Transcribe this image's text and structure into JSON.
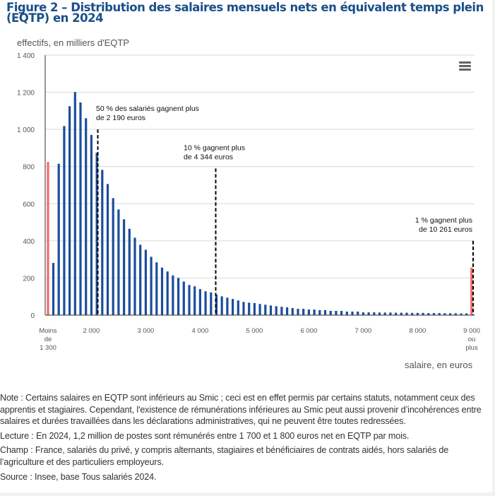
{
  "title": "Figure 2 – Distribution des salaires mensuels nets en équivalent temps plein (EQTP) en 2024",
  "menu_icon": "hamburger-menu-icon",
  "colors": {
    "bar": "#1b4d9b",
    "edge_bar": "#f26b6b",
    "grid": "#d9d9d9",
    "title": "#1b4f8a"
  },
  "chart_data": {
    "type": "bar",
    "title": "Distribution des salaires mensuels nets en équivalent temps plein (EQTP) en 2024",
    "ylabel": "effectifs, en milliers d'EQTP",
    "xlabel": "salaire, en euros",
    "ylim": [
      0,
      1400
    ],
    "yticks": [
      0,
      200,
      400,
      600,
      800,
      1000,
      1200,
      1400
    ],
    "ytick_labels": [
      "0",
      "200",
      "400",
      "600",
      "800",
      "1 000",
      "1 200",
      "1 400"
    ],
    "grid": true,
    "x_bin_width": 100,
    "xticks": [
      {
        "value": 1200,
        "label": [
          "Moins",
          "de",
          "1 300"
        ]
      },
      {
        "value": 2000,
        "label": [
          "2 000"
        ]
      },
      {
        "value": 3000,
        "label": [
          "3 000"
        ]
      },
      {
        "value": 4000,
        "label": [
          "4 000"
        ]
      },
      {
        "value": 5000,
        "label": [
          "5 000"
        ]
      },
      {
        "value": 6000,
        "label": [
          "6 000"
        ]
      },
      {
        "value": 7000,
        "label": [
          "7 000"
        ]
      },
      {
        "value": 8000,
        "label": [
          "8 000"
        ]
      },
      {
        "value": 9000,
        "label": [
          "9 000",
          "ou",
          "plus"
        ]
      }
    ],
    "edge_bins": [
      {
        "label": "Moins de 1 300",
        "x": 1200,
        "value": 825
      },
      {
        "label": "9 000 ou plus",
        "x": 9000,
        "value": 256
      }
    ],
    "bins_start": 1300,
    "values": [
      281,
      815,
      1018,
      1125,
      1201,
      1145,
      1060,
      970,
      874,
      782,
      706,
      630,
      569,
      516,
      465,
      417,
      379,
      352,
      314,
      284,
      256,
      235,
      214,
      200,
      181,
      162,
      155,
      140,
      128,
      122,
      110,
      101,
      94,
      87,
      79,
      71,
      67,
      65,
      60,
      56,
      52,
      48,
      45,
      42,
      38,
      34,
      34,
      30,
      30,
      27,
      27,
      23,
      23,
      23,
      19,
      19,
      19,
      15,
      15,
      15,
      14,
      14,
      14,
      13,
      13,
      13,
      12,
      12,
      12,
      11,
      11,
      11,
      10,
      10,
      10,
      9,
      9
    ],
    "annotations": [
      {
        "x": 2190,
        "top": 1000,
        "lines": [
          "50 % des salariés gagnent plus",
          "de 2 190 euros"
        ]
      },
      {
        "x": 4344,
        "top": 790,
        "lines": [
          "10 % gagnent plus",
          "de 4 344 euros"
        ]
      },
      {
        "x": 9030,
        "top": 400,
        "lines": [
          "1 % gagnent plus",
          "de 10 261 euros"
        ]
      }
    ]
  },
  "notes": {
    "note": "Note : Certains salaires en EQTP sont inférieurs au Smic ; ceci est en effet permis par certains statuts, notamment ceux des apprentis et stagiaires. Cependant, l'existence de rémunérations inférieures au Smic peut aussi provenir d’incohérences entre salaires et durées travaillées dans les déclarations administratives, qui ne peuvent être toutes redressées.",
    "lecture": "Lecture : En 2024, 1,2 million de postes sont rémunérés entre 1 700 et 1 800 euros net en EQTP par mois.",
    "champ": "Champ : France, salariés du privé, y compris alternants, stagiaires et bénéficiaires de contrats aidés, hors salariés de l’agriculture et des particuliers employeurs.",
    "source": "Source : Insee, base Tous salariés 2024."
  }
}
